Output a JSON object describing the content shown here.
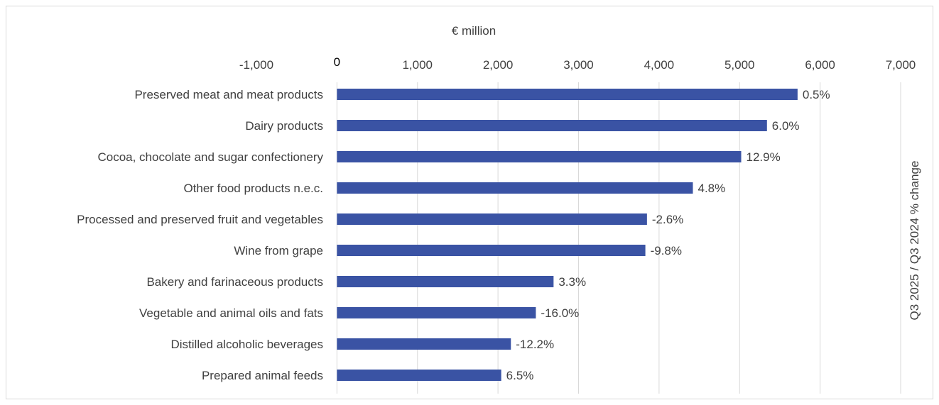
{
  "chart_data": {
    "type": "bar",
    "orientation": "horizontal",
    "x_axis_title": "€ million",
    "right_axis_title": "Q3 2025 / Q3 2024 % change",
    "xlim": [
      -1000,
      7000
    ],
    "x_ticks": [
      {
        "value": -1000,
        "label": "-1,000"
      },
      {
        "value": 0,
        "label": "0"
      },
      {
        "value": 1000,
        "label": "1,000"
      },
      {
        "value": 2000,
        "label": "2,000"
      },
      {
        "value": 3000,
        "label": "3,000"
      },
      {
        "value": 4000,
        "label": "4,000"
      },
      {
        "value": 5000,
        "label": "5,000"
      },
      {
        "value": 6000,
        "label": "6,000"
      },
      {
        "value": 7000,
        "label": "7,000"
      }
    ],
    "x_axis_position": "top",
    "grid": "vertical",
    "categories": [
      "Preserved meat and meat products",
      "Dairy products",
      "Cocoa, chocolate and sugar confectionery",
      "Other food products n.e.c.",
      "Processed and preserved fruit and vegetables",
      "Wine from grape",
      "Bakery and farinaceous products",
      "Vegetable and animal oils and fats",
      "Distilled alcoholic beverages",
      "Prepared animal feeds"
    ],
    "values": [
      5720,
      5340,
      5020,
      4420,
      3850,
      3830,
      2690,
      2470,
      2160,
      2040
    ],
    "data_labels": [
      "0.5%",
      "6.0%",
      "12.9%",
      "4.8%",
      "-2.6%",
      "-9.8%",
      "3.3%",
      "-16.0%",
      "-12.2%",
      "6.5%"
    ],
    "bar_color": "#3a53a4",
    "grid_color": "#d9d9d9"
  }
}
